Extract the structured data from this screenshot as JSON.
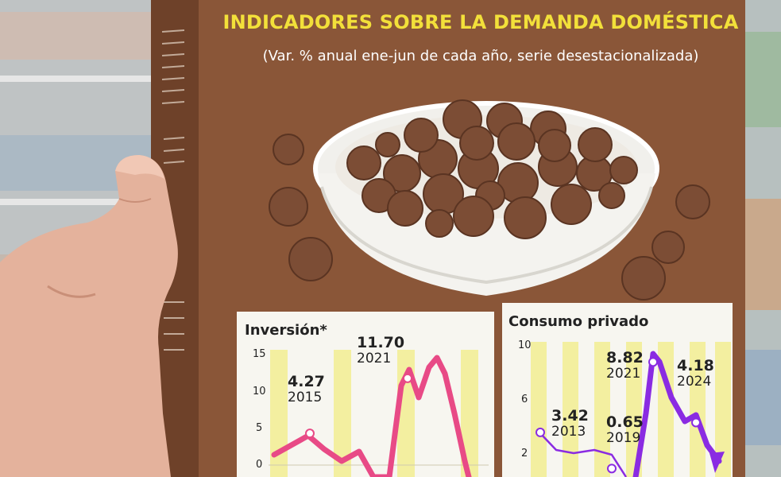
{
  "title": "INDICADORES SOBRE LA DEMANDA DOMÉSTICA",
  "subtitle": "(Var. % anual ene-jun de cada año, serie desestacionalizada)",
  "colors": {
    "box": "#8a5638",
    "title": "#f2e03a",
    "subtitle": "#ffffff",
    "inversion_line": "#e84a86",
    "consumo_line": "#8a2be2",
    "stripe": "#f3efa0"
  },
  "chart_data": [
    {
      "type": "line",
      "title": "Inversión*",
      "yticks": [
        "15",
        "10",
        "5",
        "0"
      ],
      "ylim": [
        -2,
        15
      ],
      "series": [
        {
          "values": [
            {
              "year": "2015",
              "value": 4.27
            },
            {
              "year": "2021",
              "value": 11.7
            }
          ]
        }
      ],
      "annotations": [
        {
          "value": "4.27",
          "year": "2015"
        },
        {
          "value": "11.70",
          "year": "2021"
        }
      ]
    },
    {
      "type": "line",
      "title": "Consumo privado",
      "yticks": [
        "10",
        "6",
        "2"
      ],
      "ylim": [
        0,
        10
      ],
      "series": [
        {
          "values": [
            {
              "year": "2013",
              "value": 3.42
            },
            {
              "year": "2019",
              "value": 0.65
            },
            {
              "year": "2021",
              "value": 8.82
            },
            {
              "year": "2024",
              "value": 4.18
            }
          ]
        }
      ],
      "annotations": [
        {
          "value": "3.42",
          "year": "2013"
        },
        {
          "value": "0.65",
          "year": "2019"
        },
        {
          "value": "8.82",
          "year": "2021"
        },
        {
          "value": "4.18",
          "year": "2024"
        }
      ]
    }
  ]
}
